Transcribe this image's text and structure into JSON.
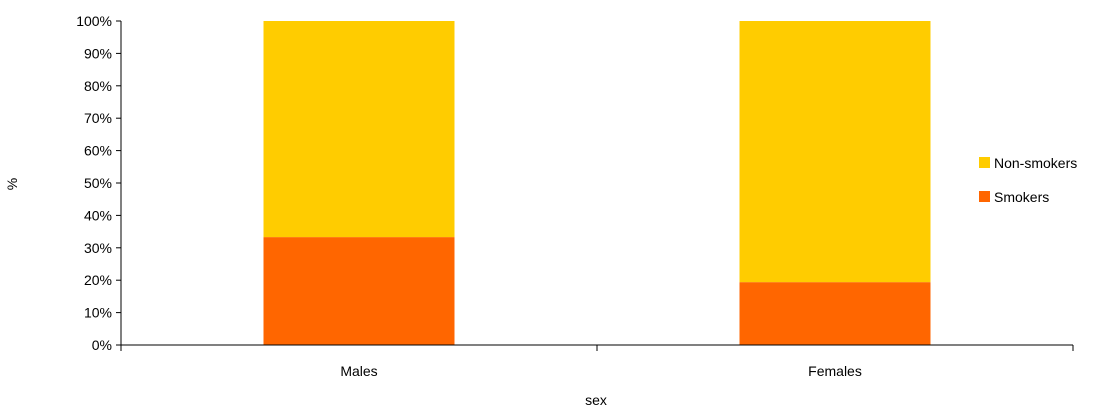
{
  "chart_data": {
    "type": "bar",
    "stacked": true,
    "percent_stacked": true,
    "categories": [
      "Males",
      "Females"
    ],
    "series": [
      {
        "name": "Smokers",
        "values": [
          33.3,
          19.4
        ],
        "color": "#FF6600"
      },
      {
        "name": "Non-smokers",
        "values": [
          66.7,
          80.6
        ],
        "color": "#FFCC00"
      }
    ],
    "xlabel": "sex",
    "ylabel": "%",
    "ylim": [
      0,
      100
    ],
    "y_ticks": [
      "0%",
      "10%",
      "20%",
      "30%",
      "40%",
      "50%",
      "60%",
      "70%",
      "80%",
      "90%",
      "100%"
    ],
    "grid": false,
    "legend_position": "right",
    "legend_order": [
      "Non-smokers",
      "Smokers"
    ]
  }
}
